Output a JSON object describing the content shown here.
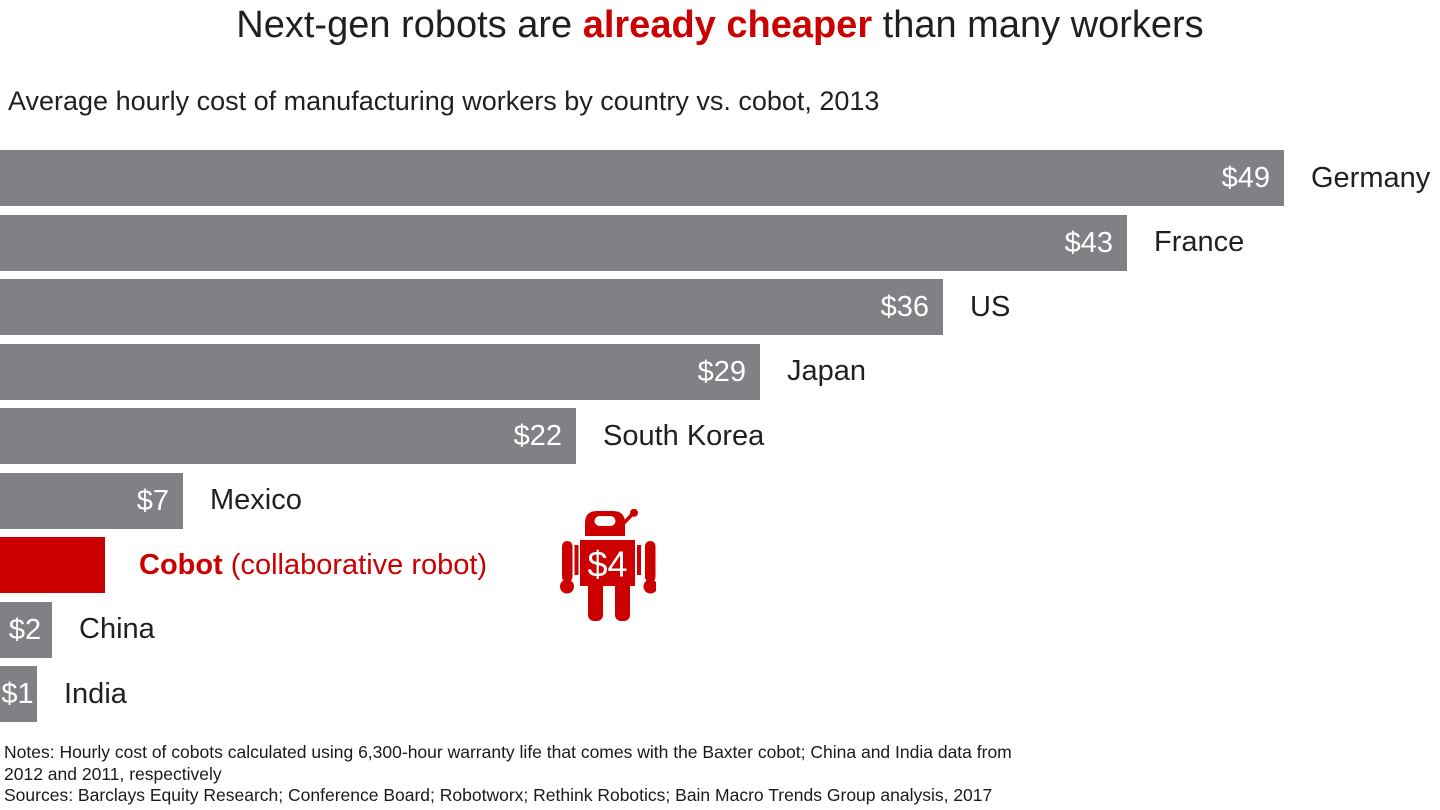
{
  "title": {
    "pre": "Next-gen robots are ",
    "highlight": "already cheaper",
    "post": " than many workers"
  },
  "subtitle": "Average hourly cost of manufacturing workers by country vs. cobot, 2013",
  "chart_data": {
    "type": "bar",
    "orientation": "horizontal",
    "title": "Next-gen robots are already cheaper than many workers",
    "subtitle": "Average hourly cost of manufacturing workers by country vs. cobot, 2013",
    "unit": "US dollars per hour",
    "xlim": [
      0,
      49
    ],
    "grid": false,
    "legend": false,
    "categories": [
      "Germany",
      "France",
      "US",
      "Japan",
      "South Korea",
      "Mexico",
      "Cobot (collaborative robot)",
      "China",
      "India"
    ],
    "values": [
      49,
      43,
      36,
      29,
      22,
      7,
      4,
      2,
      1
    ],
    "items": [
      {
        "label": "Germany",
        "value": 49,
        "value_label": "$49",
        "highlight": false,
        "value_in_bar": true
      },
      {
        "label": "France",
        "value": 43,
        "value_label": "$43",
        "highlight": false,
        "value_in_bar": true
      },
      {
        "label": "US",
        "value": 36,
        "value_label": "$36",
        "highlight": false,
        "value_in_bar": true
      },
      {
        "label": "Japan",
        "value": 29,
        "value_label": "$29",
        "highlight": false,
        "value_in_bar": true
      },
      {
        "label": "South Korea",
        "value": 22,
        "value_label": "$22",
        "highlight": false,
        "value_in_bar": true
      },
      {
        "label": "Mexico",
        "value": 7,
        "value_label": "$7",
        "highlight": false,
        "value_in_bar": true
      },
      {
        "label": "Cobot (collaborative robot)",
        "label_bold": "Cobot",
        "label_rest": " (collaborative robot)",
        "value": 4,
        "value_label": "$4",
        "highlight": true,
        "value_in_bar": false
      },
      {
        "label": "China",
        "value": 2,
        "value_label": "$2",
        "highlight": false,
        "value_in_bar": true
      },
      {
        "label": "India",
        "value": 1,
        "value_label": "$1",
        "highlight": false,
        "value_in_bar": true
      }
    ]
  },
  "robot_badge": {
    "icon": "robot-icon",
    "value_label": "$4"
  },
  "footer": {
    "notes_lines": [
      "Notes: Hourly cost of cobots calculated using 6,300-hour warranty life that comes with the Baxter cobot; China and India data from",
      "2012 and 2011, respectively"
    ],
    "sources": "Sources: Barclays Equity Research; Conference Board; Robotworx; Rethink Robotics; Bain Macro Trends Group analysis, 2017"
  },
  "colors": {
    "bar_gray": "#808184",
    "accent_red": "#cc0000",
    "text_dark": "#231f20",
    "value_text": "#ffffff",
    "background": "#ffffff"
  }
}
